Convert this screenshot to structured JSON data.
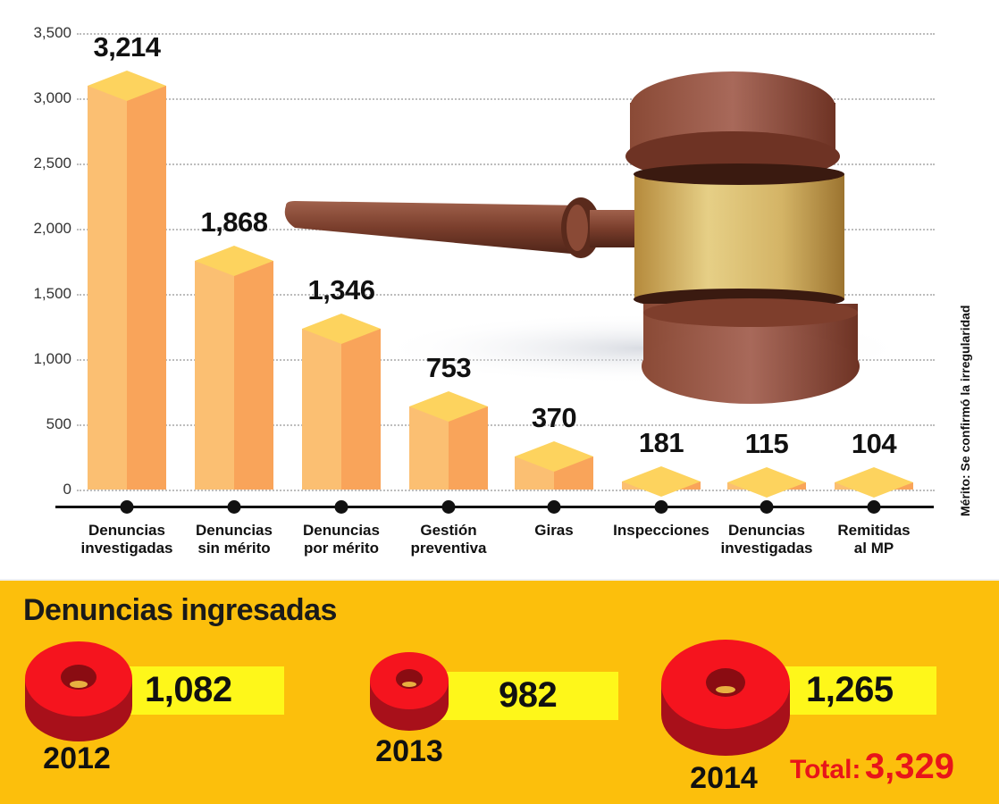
{
  "chart_data": [
    {
      "type": "bar",
      "title": "",
      "xlabel": "",
      "ylabel": "",
      "ylim": [
        0,
        3500
      ],
      "yticks": [
        0,
        500,
        1000,
        1500,
        2000,
        2500,
        3000,
        3500
      ],
      "ytick_labels": [
        "0",
        "500",
        "1,000",
        "1,500",
        "2,000",
        "2,500",
        "3,000",
        "3,500"
      ],
      "grid": true,
      "categories": [
        "Denuncias investigadas",
        "Denuncias sin mérito",
        "Denuncias por mérito",
        "Gestión preventiva",
        "Giras",
        "Inspecciones",
        "Denuncias investigadas",
        "Remitidas al MP"
      ],
      "category_lines": [
        [
          "Denuncias",
          "investigadas"
        ],
        [
          "Denuncias",
          "sin mérito"
        ],
        [
          "Denuncias",
          "por mérito"
        ],
        [
          "Gestión",
          "preventiva"
        ],
        [
          "Giras"
        ],
        [
          "Inspecciones"
        ],
        [
          "Denuncias",
          "investigadas"
        ],
        [
          "Remitidas",
          "al MP"
        ]
      ],
      "values": [
        3214,
        1868,
        1346,
        753,
        370,
        181,
        115,
        104
      ],
      "value_labels": [
        "3,214",
        "1,868",
        "1,346",
        "753",
        "370",
        "181",
        "115",
        "104"
      ],
      "annotations": [
        "Mérito: Se confirmó la irregularidad"
      ],
      "colors": {
        "bar_light": "#fbbf72",
        "bar_dark": "#f9a45a",
        "bar_top": "#fdd35e"
      }
    },
    {
      "type": "table",
      "title": "Denuncias ingresadas",
      "categories": [
        "2012",
        "2013",
        "2014"
      ],
      "values": [
        1082,
        982,
        1265
      ],
      "value_labels": [
        "1,082",
        "982",
        "1,265"
      ],
      "total": 3329,
      "total_label": "Total:",
      "total_value": "3,329"
    }
  ],
  "side_note": "Mérito: Se confirmó la irregularidad",
  "panel": {
    "title": "Denuncias ingresadas",
    "years": [
      {
        "year": "2012",
        "value": "1,082"
      },
      {
        "year": "2013",
        "value": "982"
      },
      {
        "year": "2014",
        "value": "1,265"
      }
    ],
    "total_label": "Total:",
    "total_value": "3,329",
    "colors": {
      "background": "#fcbf0c",
      "value_box": "#fef71a",
      "donut": "#f5141e",
      "donut_side": "#a8101a",
      "total": "#e8141a"
    }
  },
  "icons": {
    "illustration": "gavel-icon",
    "year-marker": "red-donut-icon"
  }
}
